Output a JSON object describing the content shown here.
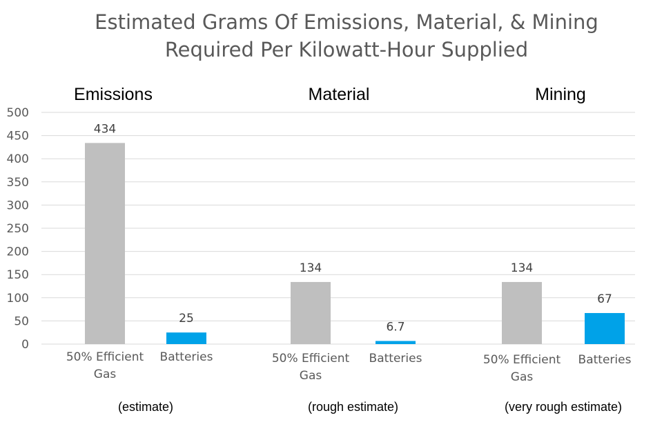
{
  "chart_data": {
    "type": "bar",
    "title": [
      "Estimated Grams Of Emissions, Material, & Mining",
      "Required Per Kilowatt-Hour Supplied"
    ],
    "ylim": [
      0,
      500
    ],
    "yticks": [
      0,
      50,
      100,
      150,
      200,
      250,
      300,
      350,
      400,
      450,
      500
    ],
    "grid": true,
    "colors": {
      "gas": "#bfbfbf",
      "batteries": "#00a2e8",
      "grid": "#d9d9d9",
      "axis_text": "#595959"
    },
    "groups": [
      {
        "title": "Emissions",
        "note": "(estimate)",
        "bars": [
          {
            "category": [
              "50% Efficient",
              "Gas"
            ],
            "value": 434,
            "label": "434",
            "color": "#bfbfbf"
          },
          {
            "category": [
              "Batteries"
            ],
            "value": 25,
            "label": "25",
            "color": "#00a2e8"
          }
        ]
      },
      {
        "title": "Material",
        "note": "(rough estimate)",
        "bars": [
          {
            "category": [
              "50% Efficient",
              "Gas"
            ],
            "value": 134,
            "label": "134",
            "color": "#bfbfbf"
          },
          {
            "category": [
              "Batteries"
            ],
            "value": 6.7,
            "label": "6.7",
            "color": "#00a2e8"
          }
        ]
      },
      {
        "title": "Mining",
        "note": "(very rough estimate)",
        "bars": [
          {
            "category": [
              "50% Efficient",
              "Gas"
            ],
            "value": 134,
            "label": "134",
            "color": "#bfbfbf"
          },
          {
            "category": [
              "Batteries"
            ],
            "value": 67,
            "label": "67",
            "color": "#00a2e8"
          }
        ]
      }
    ]
  }
}
